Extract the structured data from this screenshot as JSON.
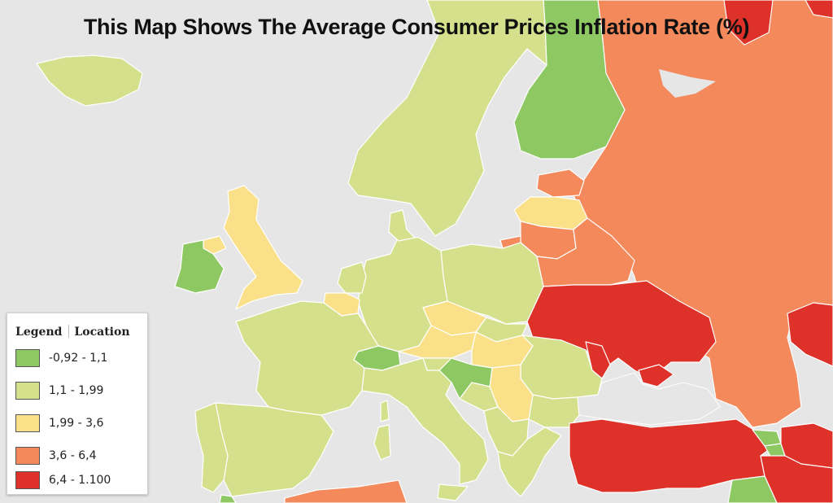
{
  "title": "This Map Shows The Average Consumer Prices Inflation Rate (%)",
  "legend": {
    "heading": "Legend",
    "subheading": "Location",
    "classes": [
      {
        "label": "-0,92 - 1,1",
        "color": "#8dc863"
      },
      {
        "label": "1,1 - 1,99",
        "color": "#d5e08c"
      },
      {
        "label": "1,99 - 3,6",
        "color": "#fbe08a"
      },
      {
        "label": "3,6 - 6,4",
        "color": "#f4895b"
      },
      {
        "label": "6,4 - 1.100",
        "color": "#dd3129"
      }
    ]
  },
  "colors": {
    "water": "#e6e6e6",
    "borders": "#ffffff"
  }
}
